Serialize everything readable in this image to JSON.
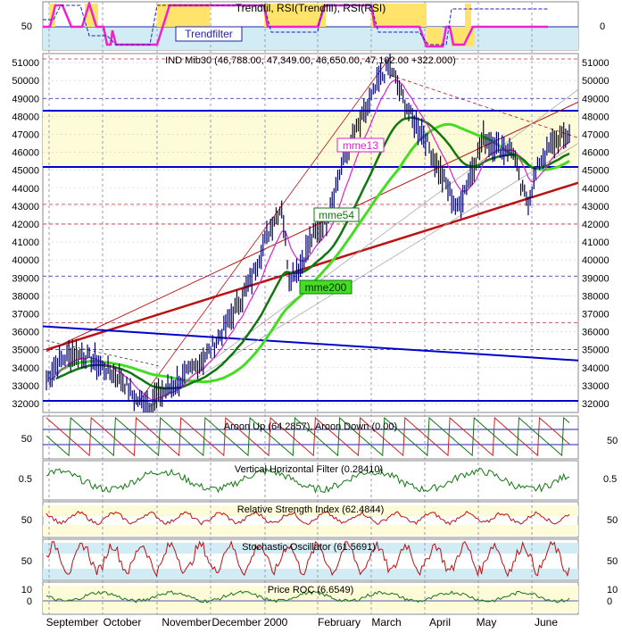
{
  "months": [
    "September",
    "October",
    "November",
    "December",
    "2000",
    "February",
    "March",
    "April",
    "May",
    "June"
  ],
  "colors": {
    "bg": "#ffffff",
    "band": "#fefbd8",
    "band_blue": "#d2ecf6",
    "grid": "#000088",
    "price": "#000066",
    "mme13": "#dd22cc",
    "mme54": "#117711",
    "mme200": "#44dd22",
    "red": "#bb1111",
    "blue": "#0000cc"
  },
  "panels": [
    {
      "id": "trend",
      "title": "Trendfil, RSI(Trendfil), RSI(RSI)",
      "label": "Trendfilter",
      "left_axis": [
        "50"
      ],
      "right_axis": [
        "0"
      ]
    },
    {
      "id": "price",
      "title": "IND Mib30 (46,788.00, 47,349.00, 46,650.00, 47,102.00 +322.000)",
      "ylim": [
        31500,
        51500
      ],
      "ticks": [
        "51000",
        "50000",
        "49000",
        "48000",
        "47000",
        "46000",
        "45000",
        "44000",
        "43000",
        "42000",
        "41000",
        "40000",
        "39000",
        "38000",
        "37000",
        "36000",
        "35000",
        "34000",
        "33000",
        "32000"
      ],
      "labels": {
        "mme13": "mme13",
        "mme54": "mme54",
        "mme200": "mme200"
      }
    },
    {
      "id": "aroon",
      "title": "Aroon Up (64.2857), Aroon Down (0.00)",
      "left_axis": [
        "50"
      ],
      "right_axis": [
        "50"
      ]
    },
    {
      "id": "vhf",
      "title": "Vertical Horizontal Filter (0.28410)",
      "left_axis": [
        "0.5"
      ],
      "right_axis": [
        "0.5"
      ]
    },
    {
      "id": "rsi",
      "title": "Relative Strength Index (62.4844)",
      "left_axis": [
        "50"
      ],
      "right_axis": [
        "50"
      ]
    },
    {
      "id": "stoch",
      "title": "Stochastic Oscillator (61.5691)",
      "left_axis": [
        "50"
      ],
      "right_axis": [
        "50"
      ]
    },
    {
      "id": "roc",
      "title": "Price ROC (6.6549)",
      "left_axis": [
        "10",
        "0"
      ],
      "right_axis": [
        "10",
        "0"
      ]
    }
  ],
  "chart_data": {
    "type": "line",
    "x_unit": "trading days (Sep 1999 – Jun 2000)",
    "series": [
      {
        "name": "IND Mib30",
        "approx_path": [
          [
            0,
            33300
          ],
          [
            6,
            34300
          ],
          [
            14,
            34800
          ],
          [
            22,
            34600
          ],
          [
            30,
            34000
          ],
          [
            40,
            33400
          ],
          [
            48,
            32200
          ],
          [
            55,
            32000
          ],
          [
            62,
            32600
          ],
          [
            72,
            33300
          ],
          [
            80,
            34100
          ],
          [
            88,
            35000
          ],
          [
            96,
            36300
          ],
          [
            104,
            37800
          ],
          [
            110,
            39000
          ],
          [
            116,
            40800
          ],
          [
            122,
            42300
          ],
          [
            126,
            43000
          ],
          [
            130,
            39000
          ],
          [
            136,
            39700
          ],
          [
            142,
            41200
          ],
          [
            150,
            42300
          ],
          [
            158,
            45200
          ],
          [
            166,
            47200
          ],
          [
            172,
            48500
          ],
          [
            178,
            50000
          ],
          [
            184,
            50800
          ],
          [
            190,
            49200
          ],
          [
            196,
            47800
          ],
          [
            202,
            47000
          ],
          [
            208,
            45500
          ],
          [
            214,
            44200
          ],
          [
            220,
            42800
          ],
          [
            226,
            44500
          ],
          [
            234,
            46800
          ],
          [
            242,
            46300
          ],
          [
            250,
            46100
          ],
          [
            254,
            44000
          ],
          [
            258,
            43300
          ],
          [
            264,
            45500
          ],
          [
            272,
            46600
          ],
          [
            280,
            47000
          ]
        ]
      }
    ]
  }
}
